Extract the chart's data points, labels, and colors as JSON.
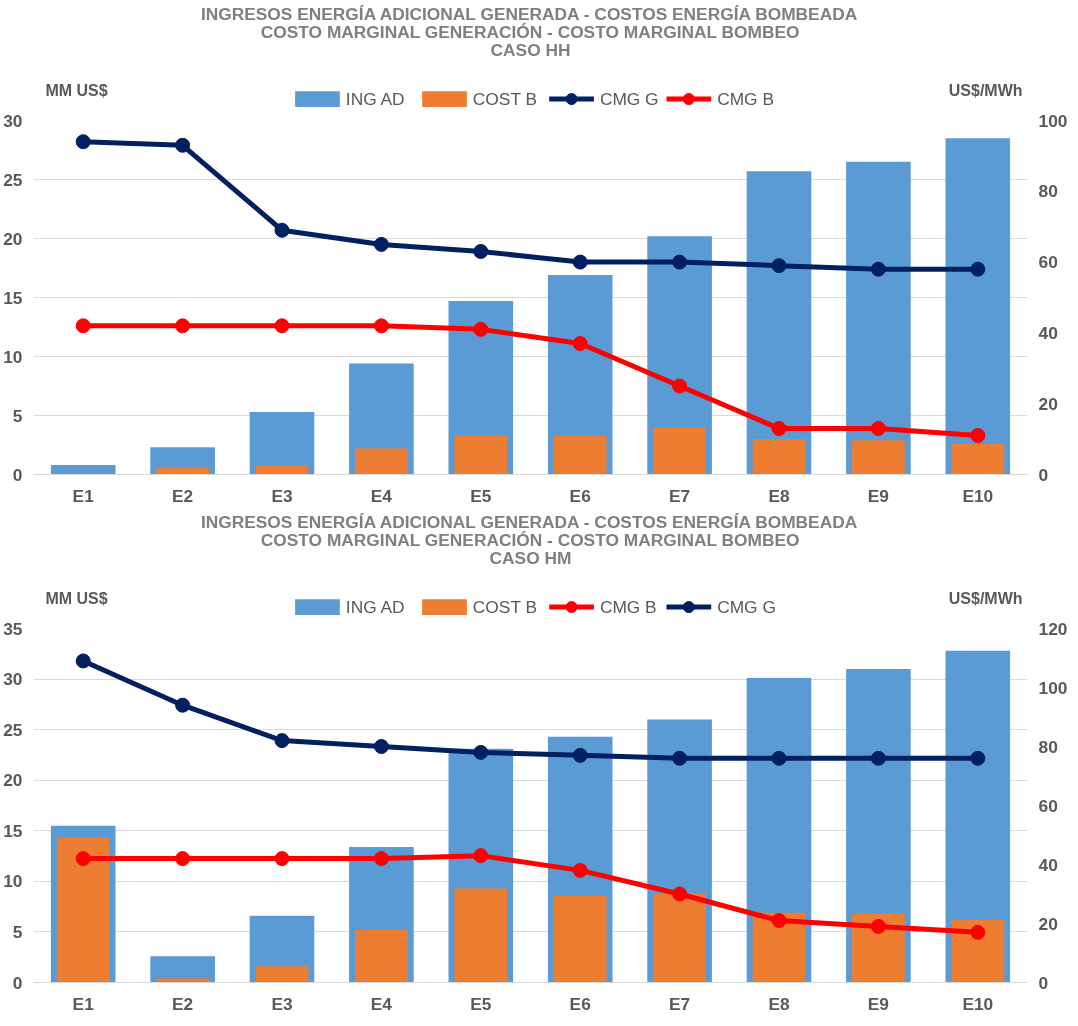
{
  "chart_data": [
    {
      "type": "bar",
      "title": "INGRESOS ENERGÍA ADICIONAL GENERADA - COSTOS ENERGÍA BOMBEADA\nCOSTO MARGINAL GENERACIÓN - COSTO MARGINAL BOMBEO\nCASO HH",
      "ylabel": "MM US$",
      "y2label": "US$/MWh",
      "categories": [
        "E1",
        "E2",
        "E3",
        "E4",
        "E5",
        "E6",
        "E7",
        "E8",
        "E9",
        "E10"
      ],
      "series": [
        {
          "name": "ING AD",
          "color": "#5b9bd5",
          "values": [
            0.8,
            2.3,
            5.3,
            9.4,
            14.7,
            16.9,
            20.2,
            25.7,
            26.5,
            28.5
          ]
        },
        {
          "name": "COST B",
          "color": "#ed7d31",
          "values": [
            0,
            0.6,
            0.8,
            2.2,
            3.3,
            3.3,
            4.0,
            3.0,
            2.9,
            2.6
          ]
        },
        {
          "name": "CMG G",
          "type": "line",
          "axis": "y2",
          "color": "#002060",
          "values": [
            94,
            93,
            69,
            65,
            63,
            60,
            60,
            59,
            58,
            58
          ]
        },
        {
          "name": "CMG B",
          "type": "line",
          "axis": "y2",
          "color": "#ff0000",
          "values": [
            42,
            42,
            42,
            42,
            41,
            37,
            25,
            13,
            13,
            11
          ]
        }
      ],
      "ylim": [
        0,
        30
      ],
      "yticks": [
        0,
        5,
        10,
        15,
        20,
        25,
        30
      ],
      "y2lim": [
        0,
        100
      ],
      "y2ticks": [
        0,
        20,
        40,
        60,
        80,
        100
      ],
      "grid": "y",
      "legend": "top",
      "marker": "circle"
    },
    {
      "type": "bar",
      "title": "INGRESOS ENERGÍA ADICIONAL GENERADA - COSTOS ENERGÍA BOMBEADA\nCOSTO MARGINAL GENERACIÓN - COSTO MARGINAL BOMBEO\nCASO HM",
      "ylabel": "MM US$",
      "y2label": "US$/MWh",
      "categories": [
        "E1",
        "E2",
        "E3",
        "E4",
        "E5",
        "E6",
        "E7",
        "E8",
        "E9",
        "E10"
      ],
      "series": [
        {
          "name": "ING AD",
          "color": "#5b9bd5",
          "values": [
            15.5,
            2.6,
            6.6,
            13.4,
            23.1,
            24.3,
            26.0,
            30.1,
            31.0,
            32.8
          ]
        },
        {
          "name": "COST B",
          "color": "#ed7d31",
          "values": [
            14.3,
            0.4,
            1.6,
            5.2,
            9.3,
            8.6,
            8.8,
            6.9,
            6.8,
            6.2
          ]
        },
        {
          "name": "CMG B",
          "type": "line",
          "axis": "y2",
          "color": "#ff0000",
          "values": [
            42,
            42,
            42,
            42,
            43,
            38,
            30,
            21,
            19,
            17
          ]
        },
        {
          "name": "CMG G",
          "type": "line",
          "axis": "y2",
          "color": "#002060",
          "values": [
            109,
            94,
            82,
            80,
            78,
            77,
            76,
            76,
            76,
            76
          ]
        }
      ],
      "ylim": [
        0,
        35
      ],
      "yticks": [
        0,
        5,
        10,
        15,
        20,
        25,
        30,
        35
      ],
      "y2lim": [
        0,
        120
      ],
      "y2ticks": [
        0,
        20,
        40,
        60,
        80,
        100,
        120
      ],
      "grid": "y",
      "legend": "top",
      "marker": "circle"
    }
  ]
}
